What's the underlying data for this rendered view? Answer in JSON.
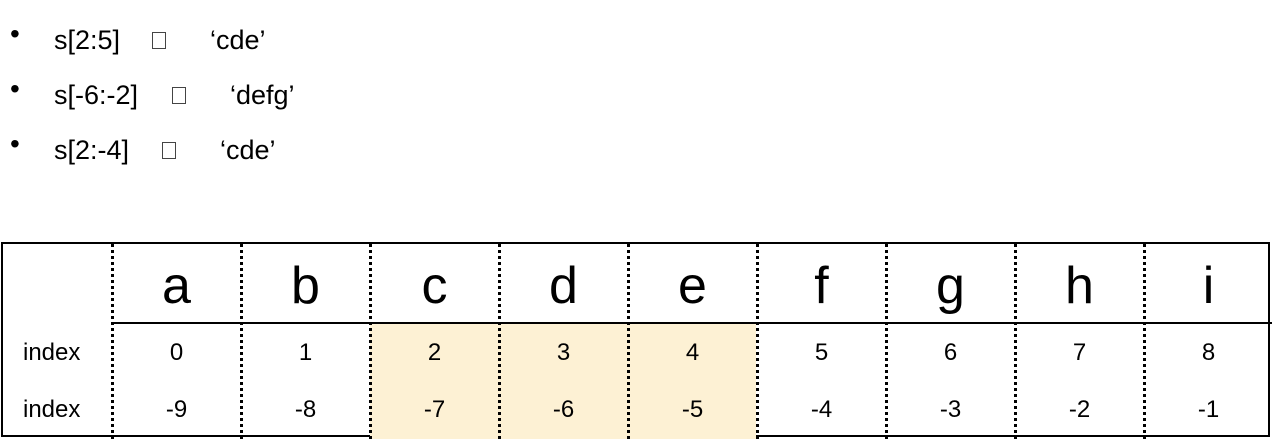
{
  "bullets": [
    {
      "bullet": "•",
      "expr": "s[2:5]",
      "result": "‘cde’"
    },
    {
      "bullet": "•",
      "expr": "s[-6:-2]",
      "result": "‘defg’"
    },
    {
      "bullet": "•",
      "expr": "s[2:-4]",
      "result": "‘cde’"
    }
  ],
  "table": {
    "row_labels": [
      "index",
      "index"
    ],
    "letters": [
      "a",
      "b",
      "c",
      "d",
      "e",
      "f",
      "g",
      "h",
      "i"
    ],
    "positive_index": [
      "0",
      "1",
      "2",
      "3",
      "4",
      "5",
      "6",
      "7",
      "8"
    ],
    "negative_index": [
      "-9",
      "-8",
      "-7",
      "-6",
      "-5",
      "-4",
      "-3",
      "-2",
      "-1"
    ],
    "highlighted_columns": [
      2,
      3,
      4
    ],
    "highlight_color": "#fdf1d4"
  }
}
